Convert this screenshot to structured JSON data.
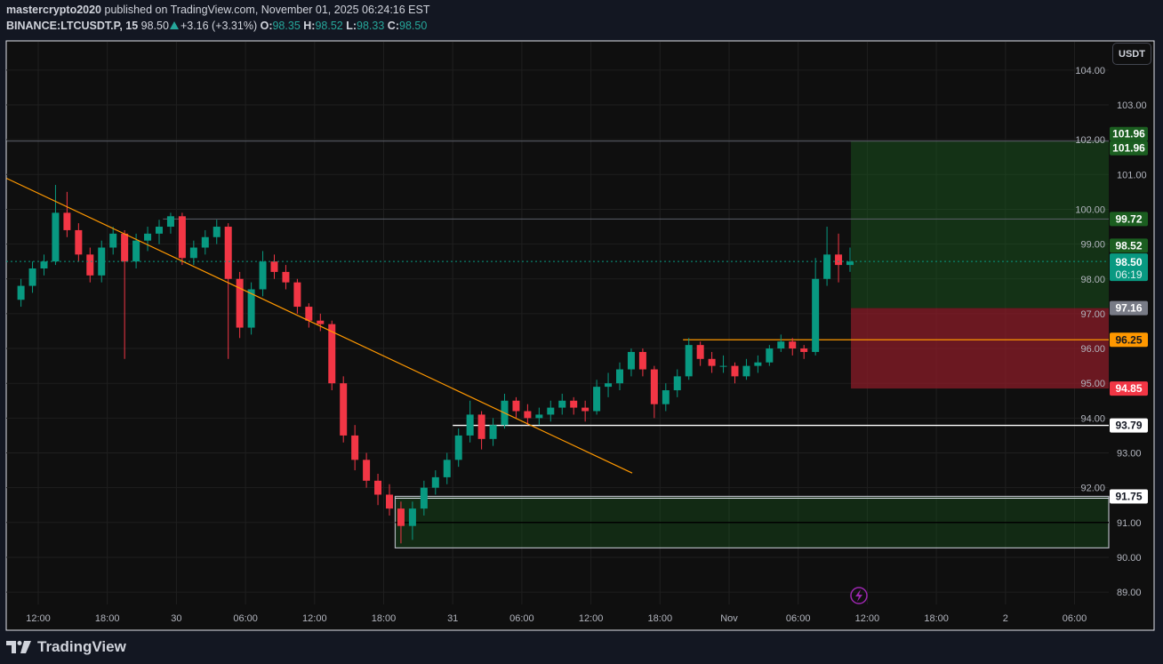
{
  "header": {
    "author": "mastercrypto2020",
    "published": "published on TradingView.com, November 01, 2025 06:24:16 EST",
    "symbol": "BINANCE:LTCUSDT.P, 15",
    "last": "98.50",
    "change": "+3.16 (+3.31%)",
    "o_label": "O:",
    "o": "98.35",
    "h_label": "H:",
    "h": "98.52",
    "l_label": "L:",
    "l": "98.33",
    "c_label": "C:",
    "c": "98.50"
  },
  "currency_button": "USDT",
  "brand": "TradingView",
  "colors": {
    "up": "#089981",
    "down": "#f23645",
    "trendline": "#ff9800",
    "profit": "#1b5e20",
    "loss": "#8b1c28"
  },
  "chart_data": {
    "type": "candlestick",
    "symbol": "LTCUSDT.P",
    "interval": "15",
    "ylim": [
      88.5,
      104.3
    ],
    "grid": true,
    "y_ticks": [
      "89.00",
      "90.00",
      "91.00",
      "92.00",
      "93.00",
      "94.00",
      "95.00",
      "96.00",
      "97.00",
      "98.00",
      "99.00",
      "100.00",
      "101.00",
      "102.00",
      "103.00",
      "104.00"
    ],
    "x_ticks": [
      {
        "label": "12:00",
        "t": "2025-10-29T12:00"
      },
      {
        "label": "18:00",
        "t": "2025-10-29T18:00"
      },
      {
        "label": "30",
        "t": "2025-10-30T00:00"
      },
      {
        "label": "06:00",
        "t": "2025-10-30T06:00"
      },
      {
        "label": "12:00",
        "t": "2025-10-30T12:00"
      },
      {
        "label": "18:00",
        "t": "2025-10-30T18:00"
      },
      {
        "label": "31",
        "t": "2025-10-31T00:00"
      },
      {
        "label": "06:00",
        "t": "2025-10-31T06:00"
      },
      {
        "label": "12:00",
        "t": "2025-10-31T12:00"
      },
      {
        "label": "18:00",
        "t": "2025-10-31T18:00"
      },
      {
        "label": "Nov",
        "t": "2025-11-01T00:00"
      },
      {
        "label": "06:00",
        "t": "2025-11-01T06:00"
      },
      {
        "label": "12:00",
        "t": "2025-11-01T12:00"
      },
      {
        "label": "18:00",
        "t": "2025-11-01T18:00"
      },
      {
        "label": "2",
        "t": "2025-11-02T00:00"
      },
      {
        "label": "06:00",
        "t": "2025-11-02T06:00"
      }
    ],
    "ohlc_fields": [
      "time",
      "open",
      "high",
      "low",
      "close"
    ],
    "candles": [
      [
        "2025-10-29T10:00",
        97.4,
        98.0,
        97.2,
        97.8
      ],
      [
        "2025-10-29T11:00",
        97.8,
        98.5,
        97.6,
        98.3
      ],
      [
        "2025-10-29T12:00",
        98.3,
        98.7,
        98.1,
        98.5
      ],
      [
        "2025-10-29T13:00",
        98.5,
        100.7,
        98.4,
        99.9
      ],
      [
        "2025-10-29T14:00",
        99.9,
        100.5,
        99.2,
        99.4
      ],
      [
        "2025-10-29T15:00",
        99.4,
        99.6,
        98.5,
        98.7
      ],
      [
        "2025-10-29T16:00",
        98.7,
        98.9,
        97.9,
        98.1
      ],
      [
        "2025-10-29T17:00",
        98.1,
        99.1,
        97.9,
        98.9
      ],
      [
        "2025-10-29T18:00",
        98.9,
        99.5,
        98.7,
        99.3
      ],
      [
        "2025-10-29T19:00",
        99.3,
        99.4,
        95.7,
        98.5
      ],
      [
        "2025-10-29T20:00",
        98.5,
        99.3,
        98.3,
        99.1
      ],
      [
        "2025-10-29T21:00",
        99.1,
        99.5,
        98.8,
        99.3
      ],
      [
        "2025-10-29T22:00",
        99.3,
        99.7,
        99.0,
        99.5
      ],
      [
        "2025-10-29T23:00",
        99.5,
        99.9,
        99.3,
        99.8
      ],
      [
        "2025-10-30T00:00",
        99.8,
        99.9,
        98.4,
        98.6
      ],
      [
        "2025-10-30T01:00",
        98.6,
        99.1,
        98.4,
        98.9
      ],
      [
        "2025-10-30T02:00",
        98.9,
        99.4,
        98.7,
        99.2
      ],
      [
        "2025-10-30T03:00",
        99.2,
        99.7,
        99.0,
        99.5
      ],
      [
        "2025-10-30T04:00",
        99.5,
        99.6,
        95.7,
        98.0
      ],
      [
        "2025-10-30T05:00",
        98.0,
        98.2,
        96.3,
        96.6
      ],
      [
        "2025-10-30T06:00",
        96.6,
        97.9,
        96.4,
        97.7
      ],
      [
        "2025-10-30T07:00",
        97.7,
        98.8,
        97.5,
        98.5
      ],
      [
        "2025-10-30T08:00",
        98.5,
        98.7,
        98.0,
        98.2
      ],
      [
        "2025-10-30T09:00",
        98.2,
        98.4,
        97.7,
        97.9
      ],
      [
        "2025-10-30T10:00",
        97.9,
        98.0,
        97.0,
        97.2
      ],
      [
        "2025-10-30T11:00",
        97.2,
        97.3,
        96.6,
        96.8
      ],
      [
        "2025-10-30T12:00",
        96.8,
        97.0,
        96.5,
        96.7
      ],
      [
        "2025-10-30T13:00",
        96.7,
        96.8,
        94.8,
        95.0
      ],
      [
        "2025-10-30T14:00",
        95.0,
        95.2,
        93.3,
        93.5
      ],
      [
        "2025-10-30T15:00",
        93.5,
        93.8,
        92.5,
        92.8
      ],
      [
        "2025-10-30T16:00",
        92.8,
        93.0,
        92.0,
        92.2
      ],
      [
        "2025-10-30T17:00",
        92.2,
        92.4,
        91.5,
        91.8
      ],
      [
        "2025-10-30T18:00",
        91.8,
        92.1,
        91.2,
        91.4
      ],
      [
        "2025-10-30T19:00",
        91.4,
        91.6,
        90.4,
        90.9
      ],
      [
        "2025-10-30T20:00",
        90.9,
        91.6,
        90.5,
        91.4
      ],
      [
        "2025-10-30T21:00",
        91.4,
        92.2,
        91.2,
        92.0
      ],
      [
        "2025-10-30T22:00",
        92.0,
        92.5,
        91.8,
        92.3
      ],
      [
        "2025-10-30T23:00",
        92.3,
        93.0,
        92.1,
        92.8
      ],
      [
        "2025-10-31T00:00",
        92.8,
        93.7,
        92.6,
        93.5
      ],
      [
        "2025-10-31T01:00",
        93.5,
        94.5,
        93.3,
        94.1
      ],
      [
        "2025-10-31T02:00",
        94.1,
        94.2,
        93.1,
        93.4
      ],
      [
        "2025-10-31T03:00",
        93.4,
        94.0,
        93.2,
        93.8
      ],
      [
        "2025-10-31T04:00",
        93.8,
        94.7,
        93.7,
        94.5
      ],
      [
        "2025-10-31T05:00",
        94.5,
        94.6,
        94.0,
        94.2
      ],
      [
        "2025-10-31T06:00",
        94.2,
        94.4,
        93.8,
        94.0
      ],
      [
        "2025-10-31T07:00",
        94.0,
        94.3,
        93.8,
        94.1
      ],
      [
        "2025-10-31T08:00",
        94.1,
        94.5,
        93.9,
        94.3
      ],
      [
        "2025-10-31T09:00",
        94.3,
        94.7,
        94.1,
        94.5
      ],
      [
        "2025-10-31T10:00",
        94.5,
        94.6,
        94.1,
        94.3
      ],
      [
        "2025-10-31T11:00",
        94.3,
        94.5,
        93.9,
        94.2
      ],
      [
        "2025-10-31T12:00",
        94.2,
        95.1,
        94.1,
        94.9
      ],
      [
        "2025-10-31T13:00",
        94.9,
        95.3,
        94.6,
        95.0
      ],
      [
        "2025-10-31T14:00",
        95.0,
        95.6,
        94.8,
        95.4
      ],
      [
        "2025-10-31T15:00",
        95.4,
        96.0,
        95.2,
        95.9
      ],
      [
        "2025-10-31T16:00",
        95.9,
        96.0,
        95.2,
        95.4
      ],
      [
        "2025-10-31T17:00",
        95.4,
        95.5,
        94.0,
        94.4
      ],
      [
        "2025-10-31T18:00",
        94.4,
        95.0,
        94.2,
        94.8
      ],
      [
        "2025-10-31T19:00",
        94.8,
        95.4,
        94.6,
        95.2
      ],
      [
        "2025-10-31T20:00",
        95.2,
        96.3,
        95.1,
        96.1
      ],
      [
        "2025-10-31T21:00",
        96.1,
        96.2,
        95.5,
        95.7
      ],
      [
        "2025-10-31T22:00",
        95.7,
        95.9,
        95.3,
        95.5
      ],
      [
        "2025-10-31T23:00",
        95.5,
        95.8,
        95.3,
        95.5
      ],
      [
        "2025-11-01T00:00",
        95.5,
        95.6,
        95.0,
        95.2
      ],
      [
        "2025-11-01T01:00",
        95.2,
        95.7,
        95.1,
        95.5
      ],
      [
        "2025-11-01T02:00",
        95.5,
        95.8,
        95.3,
        95.6
      ],
      [
        "2025-11-01T03:00",
        95.6,
        96.1,
        95.5,
        96.0
      ],
      [
        "2025-11-01T04:00",
        96.0,
        96.4,
        95.9,
        96.2
      ],
      [
        "2025-11-01T05:00",
        96.2,
        96.3,
        95.8,
        96.0
      ],
      [
        "2025-11-01T06:00",
        96.0,
        96.1,
        95.7,
        95.9
      ],
      [
        "2025-11-01T07:00",
        95.9,
        98.6,
        95.8,
        98.0
      ],
      [
        "2025-11-01T08:00",
        98.0,
        99.5,
        97.8,
        98.7
      ],
      [
        "2025-11-01T09:00",
        98.7,
        99.3,
        97.9,
        98.4
      ],
      [
        "2025-11-01T10:00",
        98.4,
        98.9,
        98.2,
        98.5
      ]
    ],
    "current_price": {
      "value": 98.5,
      "label": "98.50",
      "countdown": "06:19"
    },
    "drawings": {
      "trendline": {
        "from": {
          "t": "2025-10-29T09:15",
          "p": 100.89
        },
        "to": {
          "t": "2025-10-31T15:35",
          "p": 92.42
        }
      },
      "horizontal_lines": [
        {
          "price": 101.96,
          "from": "2025-10-29T09:15",
          "color": "#5d606b"
        },
        {
          "price": 99.72,
          "from": "2025-10-29T22:50",
          "color": "#5d606b"
        },
        {
          "price": 96.25,
          "from": "2025-10-31T20:00",
          "color": "#ff9800"
        },
        {
          "price": 93.79,
          "from": "2025-10-31T00:00",
          "color": "#ffffff"
        }
      ],
      "long_position": {
        "start": "2025-11-01T10:35",
        "target": 101.96,
        "entry": 97.16,
        "stop": 94.85
      },
      "zone": {
        "start": "2025-10-30T19:00",
        "top": 91.75,
        "bottom": 90.27,
        "mid": 91.0
      }
    },
    "price_badges": [
      {
        "label": "101.96",
        "price": 101.96,
        "bg": "#1b5e20",
        "fg": "#ffffff",
        "offset": -8
      },
      {
        "label": "101.96",
        "price": 101.96,
        "bg": "#1b5e20",
        "fg": "#ffffff",
        "offset": 8
      },
      {
        "label": "99.72",
        "price": 99.72,
        "bg": "#1b5e20",
        "fg": "#ffffff",
        "offset": 0
      },
      {
        "label": "98.52",
        "price": 98.52,
        "bg": "#1b5e20",
        "fg": "#ffffff",
        "offset": -17
      },
      {
        "label": "97.16",
        "price": 97.16,
        "bg": "#787b86",
        "fg": "#ffffff",
        "offset": 0
      },
      {
        "label": "96.25",
        "price": 96.25,
        "bg": "#ff9800",
        "fg": "#131722",
        "offset": 0
      },
      {
        "label": "94.85",
        "price": 94.85,
        "bg": "#f23645",
        "fg": "#ffffff",
        "offset": 0
      },
      {
        "label": "93.79",
        "price": 93.79,
        "bg": "#ffffff",
        "fg": "#131722",
        "offset": 0
      },
      {
        "label": "91.75",
        "price": 91.75,
        "bg": "#ffffff",
        "fg": "#131722",
        "offset": 0
      }
    ]
  }
}
